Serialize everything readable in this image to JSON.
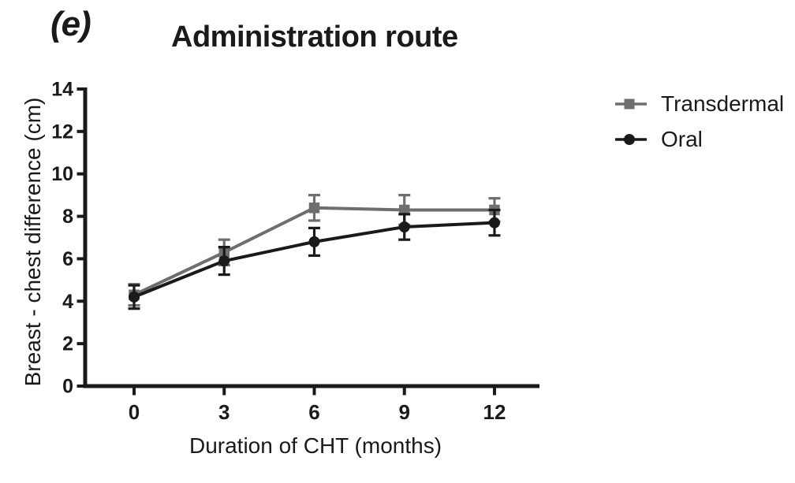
{
  "figure": {
    "panel_label": "(e)",
    "title": "Administration route",
    "background_color": "#ffffff",
    "text_color": "#1a1a1a"
  },
  "chart_data": {
    "type": "line",
    "title": "Administration route",
    "xlabel": "Duration of CHT (months)",
    "ylabel": "Breast - chest difference (cm)",
    "x": [
      0,
      3,
      6,
      9,
      12
    ],
    "xtick_labels": [
      "0",
      "3",
      "6",
      "9",
      "12"
    ],
    "ytick_values": [
      0,
      2,
      4,
      6,
      8,
      10,
      12,
      14
    ],
    "xlim": [
      0,
      12
    ],
    "ylim": [
      0,
      14
    ],
    "grid": false,
    "error_bars": true,
    "legend_position": "right-outside",
    "axis_color": "#1a1a1a",
    "series": [
      {
        "name": "Transdermal",
        "marker": "square",
        "color": "#6e6e6e",
        "values": [
          4.3,
          6.3,
          8.4,
          8.3,
          8.3
        ],
        "errors": [
          0.5,
          0.6,
          0.6,
          0.7,
          0.55
        ]
      },
      {
        "name": "Oral",
        "marker": "circle",
        "color": "#1a1a1a",
        "values": [
          4.2,
          5.9,
          6.8,
          7.5,
          7.7
        ],
        "errors": [
          0.55,
          0.65,
          0.65,
          0.6,
          0.6
        ]
      }
    ]
  }
}
